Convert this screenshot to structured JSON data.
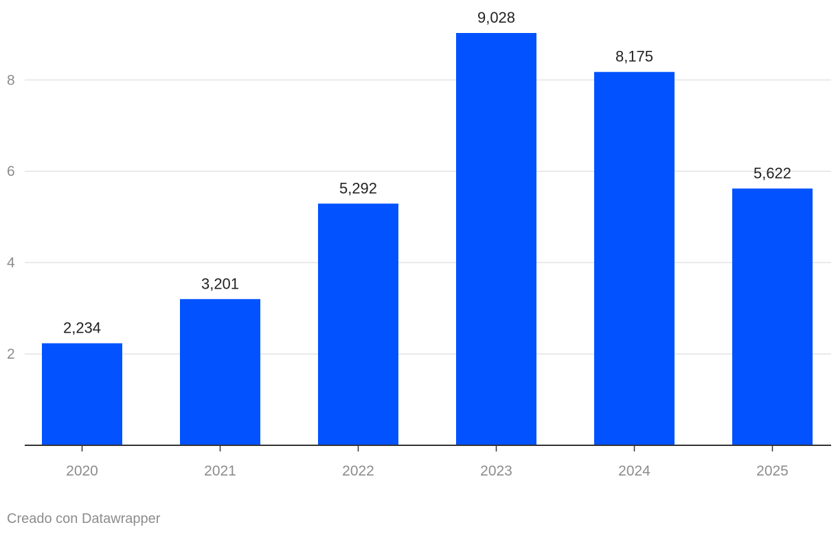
{
  "chart_data": {
    "type": "bar",
    "categories": [
      "2020",
      "2021",
      "2022",
      "2023",
      "2024",
      "2025"
    ],
    "values": [
      2.234,
      3.201,
      5.292,
      9.028,
      8.175,
      5.622
    ],
    "value_labels": [
      "2,234",
      "3,201",
      "5,292",
      "9,028",
      "8,175",
      "5,622"
    ],
    "ylim": [
      0,
      9.028
    ],
    "yticks": [
      2,
      4,
      6,
      8
    ],
    "ytick_labels": [
      "2",
      "4",
      "6",
      "8"
    ],
    "grid": true,
    "bar_color": "#0352ff",
    "title": "",
    "xlabel": "",
    "ylabel": ""
  },
  "footer": {
    "credit": "Creado con Datawrapper"
  }
}
